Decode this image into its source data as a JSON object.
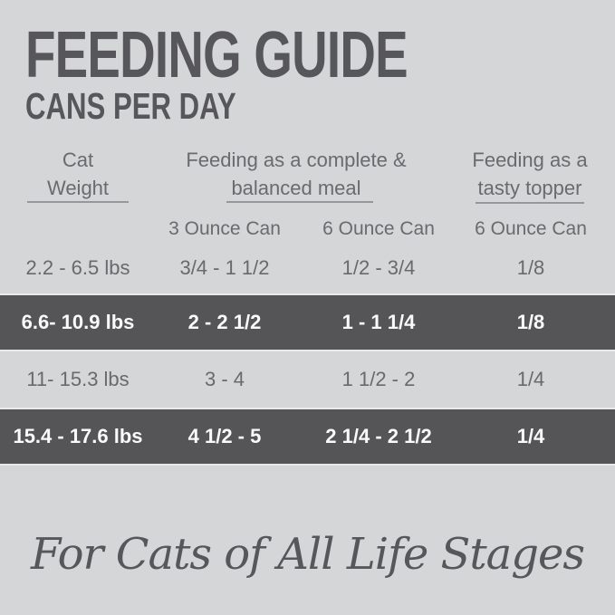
{
  "header": {
    "title": "FEEDING GUIDE",
    "subtitle": "CANS PER DAY"
  },
  "table": {
    "groups": [
      {
        "line1": "Cat",
        "line2": "Weight"
      },
      {
        "line1": "Feeding as a complete &",
        "line2": "balanced meal"
      },
      {
        "line1": "Feeding as a",
        "line2": "tasty topper"
      }
    ],
    "subheaders": [
      "3 Ounce Can",
      "6 Ounce Can",
      "6 Ounce Can"
    ],
    "rows": [
      {
        "weight": "2.2 - 6.5 lbs",
        "meal_3oz": "3/4 - 1 1/2",
        "meal_6oz": "1/2 - 3/4",
        "topper_6oz": "1/8",
        "highlighted": false
      },
      {
        "weight": "6.6- 10.9 lbs",
        "meal_3oz": "2 - 2 1/2",
        "meal_6oz": "1 - 1 1/4",
        "topper_6oz": "1/8",
        "highlighted": true
      },
      {
        "weight": "11- 15.3 lbs",
        "meal_3oz": "3 - 4",
        "meal_6oz": "1 1/2 - 2",
        "topper_6oz": "1/4",
        "highlighted": false
      },
      {
        "weight": "15.4 - 17.6 lbs",
        "meal_3oz": "4 1/2 - 5",
        "meal_6oz": "2 1/4 - 2 1/2",
        "topper_6oz": "1/4",
        "highlighted": true
      }
    ]
  },
  "footer": {
    "tagline": "For Cats of All Life Stages"
  },
  "colors": {
    "background": "#d5d6d8",
    "dark_band": "#555457",
    "title_text": "#57565a",
    "body_text": "#6a696c",
    "band_text": "#fafafa",
    "band_edge": "#eaeaec",
    "underline": "#97969a"
  }
}
